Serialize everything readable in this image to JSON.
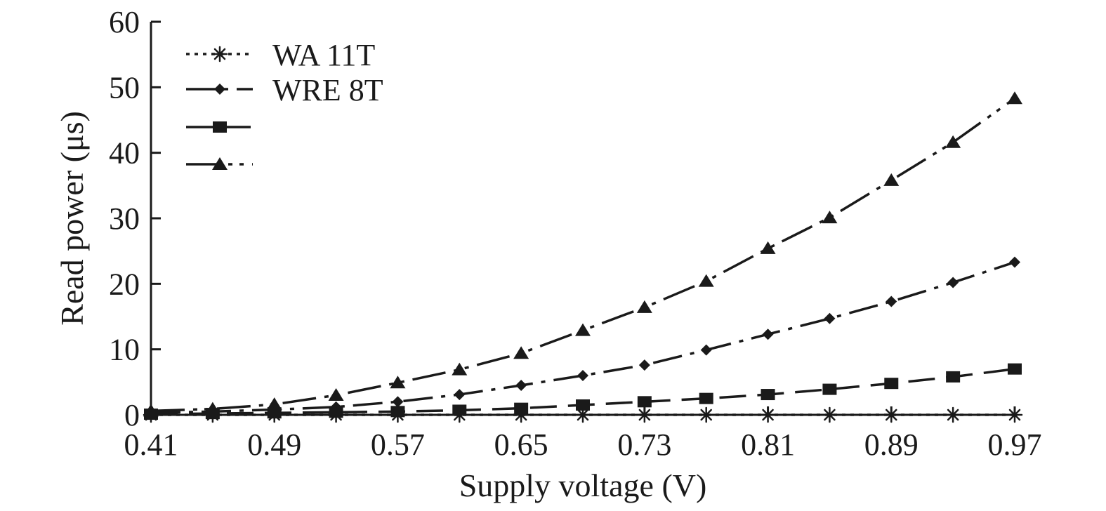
{
  "chart_data": {
    "type": "line",
    "title": "",
    "xlabel": "Supply voltage (V)",
    "ylabel": "Read power (μs)",
    "xlim": [
      0.41,
      0.97
    ],
    "ylim": [
      0,
      60
    ],
    "xticks": [
      "0.41",
      "0.49",
      "0.57",
      "0.65",
      "0.73",
      "0.81",
      "0.89",
      "0.97"
    ],
    "yticks": [
      "0",
      "10",
      "20",
      "30",
      "40",
      "50",
      "60"
    ],
    "grid": false,
    "legend_position": "top-left",
    "x": [
      0.41,
      0.45,
      0.49,
      0.53,
      0.57,
      0.61,
      0.65,
      0.69,
      0.73,
      0.77,
      0.81,
      0.85,
      0.89,
      0.93,
      0.97
    ],
    "series": [
      {
        "name": "WA 11T",
        "marker": "asterisk",
        "dash": "dotted",
        "values": [
          0,
          0,
          0,
          0,
          0,
          0,
          0,
          0,
          0,
          0,
          0,
          0,
          0,
          0,
          0
        ]
      },
      {
        "name": "WRE 8T",
        "marker": "diamond",
        "dash": "dash-dot",
        "values": [
          0.3,
          0.5,
          0.8,
          1.2,
          2.0,
          3.1,
          4.5,
          6.0,
          7.6,
          9.9,
          12.3,
          14.7,
          17.3,
          20.2,
          23.3
        ]
      },
      {
        "name": "",
        "marker": "square",
        "dash": "dashed",
        "values": [
          0.1,
          0.2,
          0.3,
          0.4,
          0.5,
          0.7,
          1.0,
          1.5,
          2.0,
          2.5,
          3.1,
          3.9,
          4.8,
          5.8,
          7.0
        ]
      },
      {
        "name": "",
        "marker": "triangle",
        "dash": "dash-dot-dot",
        "values": [
          0.6,
          0.9,
          1.6,
          3.0,
          4.9,
          6.9,
          9.4,
          12.9,
          16.4,
          20.4,
          25.4,
          30.1,
          35.8,
          41.6,
          48.3
        ]
      }
    ]
  },
  "colors": {
    "ink": "#1a1a1a",
    "background": "#ffffff"
  }
}
